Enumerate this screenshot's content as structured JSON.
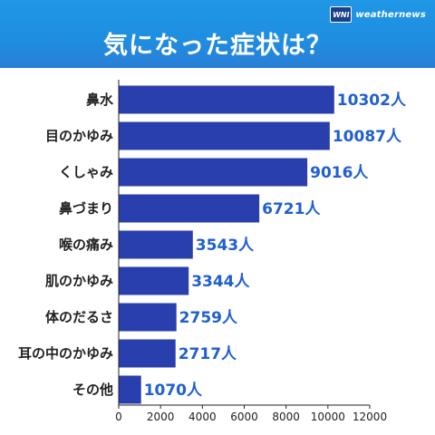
{
  "header": {
    "title": "気になった症状は？",
    "logo_mark": "WNI",
    "logo_text": "weathernews"
  },
  "colors": {
    "header": "#1f8de0",
    "bar": "#2a3fae",
    "value_text": "#1f5fd0",
    "axis": "#222222"
  },
  "chart_data": {
    "type": "bar",
    "orientation": "horizontal",
    "title": "気になった症状は？",
    "xlabel": "",
    "ylabel": "",
    "categories": [
      "鼻水",
      "目のかゆみ",
      "くしゃみ",
      "鼻づまり",
      "喉の痛み",
      "肌のかゆみ",
      "体のだるさ",
      "耳の中のかゆみ",
      "その他"
    ],
    "values": [
      10302,
      10087,
      9016,
      6721,
      3543,
      3344,
      2759,
      2717,
      1070
    ],
    "value_labels": [
      "10302人",
      "10087人",
      "9016人",
      "6721人",
      "3543人",
      "3344人",
      "2759人",
      "2717人",
      "1070人"
    ],
    "xlim": [
      0,
      12000
    ],
    "xticks": [
      0,
      2000,
      4000,
      6000,
      8000,
      10000,
      12000
    ],
    "xtick_labels": [
      "0",
      "2000",
      "4000",
      "6000",
      "8000",
      "10000",
      "12000"
    ],
    "grid": false,
    "legend": "none"
  }
}
